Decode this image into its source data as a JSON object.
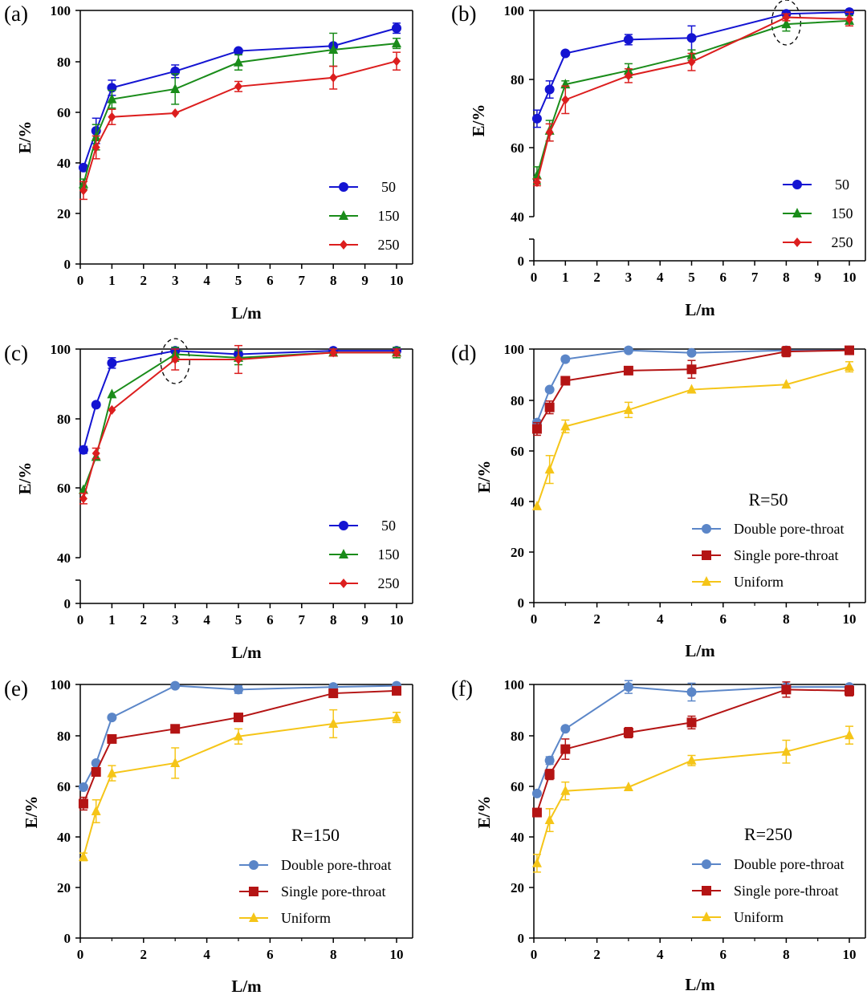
{
  "figure": {
    "colors": {
      "s50": "#1414d2",
      "s150": "#1a8c1a",
      "s250": "#dc1e1e",
      "double": "#5b86c8",
      "single": "#b41414",
      "uniform": "#f5c518"
    }
  },
  "chart_data": [
    {
      "id": "a",
      "panel_label": "(a)",
      "type": "line",
      "xlabel": "L/m",
      "ylabel": "E/%",
      "xlim": [
        0,
        10
      ],
      "ylim": [
        0,
        100
      ],
      "xticks": [
        "0",
        "1",
        "2",
        "3",
        "4",
        "5",
        "6",
        "7",
        "8",
        "9",
        "10"
      ],
      "yticks": [
        "0",
        "20",
        "40",
        "60",
        "80",
        "100"
      ],
      "x": [
        0.1,
        0.5,
        1,
        3,
        5,
        8,
        10
      ],
      "series": [
        {
          "name": "50",
          "color": "#1414d2",
          "marker": "circle",
          "values": [
            38,
            52.5,
            69.5,
            76,
            84,
            86,
            93
          ],
          "errors": [
            0,
            5,
            3,
            2.5,
            0,
            0,
            2
          ]
        },
        {
          "name": "150",
          "color": "#1a8c1a",
          "marker": "triangle",
          "values": [
            31.5,
            50,
            65,
            69,
            79.5,
            84.5,
            87
          ],
          "errors": [
            2,
            5,
            3.5,
            6,
            3,
            6.5,
            2
          ]
        },
        {
          "name": "250",
          "color": "#dc1e1e",
          "marker": "diamond",
          "values": [
            29,
            46,
            58,
            59.5,
            70,
            73.5,
            80
          ],
          "errors": [
            3.5,
            4.5,
            3,
            0,
            2,
            4.5,
            3.5
          ]
        }
      ],
      "annotations": []
    },
    {
      "id": "b",
      "panel_label": "(b)",
      "type": "line",
      "xlabel": "L/m",
      "ylabel": "E/%",
      "xlim": [
        0,
        10
      ],
      "ylim": [
        40,
        100
      ],
      "broken_axis": true,
      "xticks": [
        "0",
        "1",
        "2",
        "3",
        "4",
        "5",
        "6",
        "7",
        "8",
        "9",
        "10"
      ],
      "yticks": [
        "40",
        "60",
        "80",
        "100"
      ],
      "ybreak_label": "0",
      "x": [
        0.1,
        0.5,
        1,
        3,
        5,
        8,
        10
      ],
      "series": [
        {
          "name": "50",
          "color": "#1414d2",
          "marker": "circle",
          "values": [
            68.5,
            77,
            87.5,
            91.5,
            92,
            99,
            99.5
          ],
          "errors": [
            2.5,
            2.5,
            0,
            1.5,
            3.5,
            0.5,
            0
          ]
        },
        {
          "name": "150",
          "color": "#1a8c1a",
          "marker": "triangle",
          "values": [
            52,
            65,
            78.5,
            82.5,
            87,
            96,
            97
          ],
          "errors": [
            2.5,
            3,
            1,
            2,
            1.5,
            2,
            1.5
          ]
        },
        {
          "name": "250",
          "color": "#dc1e1e",
          "marker": "diamond",
          "values": [
            50,
            64.5,
            74,
            81,
            85,
            98,
            97.5
          ],
          "errors": [
            1,
            2.5,
            4,
            2,
            2.5,
            1,
            2
          ]
        }
      ],
      "annotations": [
        "dashed ellipse at L=8"
      ]
    },
    {
      "id": "c",
      "panel_label": "(c)",
      "type": "line",
      "xlabel": "L/m",
      "ylabel": "E/%",
      "xlim": [
        0,
        10
      ],
      "ylim": [
        40,
        100
      ],
      "broken_axis": true,
      "xticks": [
        "0",
        "1",
        "2",
        "3",
        "4",
        "5",
        "6",
        "7",
        "8",
        "9",
        "10"
      ],
      "yticks": [
        "40",
        "60",
        "80",
        "100"
      ],
      "ybreak_label": "0",
      "x": [
        0.1,
        0.5,
        1,
        3,
        5,
        8,
        10
      ],
      "series": [
        {
          "name": "50",
          "color": "#1414d2",
          "marker": "circle",
          "values": [
            71,
            84,
            96,
            99.5,
            98.5,
            99.5,
            99.5
          ],
          "errors": [
            1,
            0,
            1.5,
            0.5,
            1,
            0.5,
            0.5
          ]
        },
        {
          "name": "150",
          "color": "#1a8c1a",
          "marker": "triangle",
          "values": [
            59.5,
            69,
            87,
            98.5,
            97.5,
            99,
            99
          ],
          "errors": [
            0,
            0,
            0,
            2,
            2,
            1,
            1.5
          ]
        },
        {
          "name": "250",
          "color": "#dc1e1e",
          "marker": "diamond",
          "values": [
            57,
            70,
            82.5,
            97,
            97,
            99,
            99
          ],
          "errors": [
            1.5,
            1.5,
            0,
            3,
            4,
            1,
            1
          ]
        }
      ],
      "annotations": [
        "dashed ellipse at L=3"
      ]
    },
    {
      "id": "d",
      "panel_label": "(d)",
      "type": "line",
      "xlabel": "L/m",
      "ylabel": "E/%",
      "inner_label": "R=50",
      "xlim": [
        0,
        10
      ],
      "ylim": [
        0,
        100
      ],
      "xticks": [
        "0",
        "2",
        "4",
        "6",
        "8",
        "10"
      ],
      "yticks": [
        "0",
        "20",
        "40",
        "60",
        "80",
        "100"
      ],
      "x": [
        0.1,
        0.5,
        1,
        3,
        5,
        8,
        10
      ],
      "series": [
        {
          "name": "Double pore-throat",
          "color": "#5b86c8",
          "marker": "circle",
          "values": [
            71,
            84,
            96,
            99.5,
            98.5,
            99.5,
            99.5
          ],
          "errors": [
            1,
            0,
            1,
            1,
            0,
            0,
            0
          ]
        },
        {
          "name": "Single pore-throat",
          "color": "#b41414",
          "marker": "square",
          "values": [
            68.5,
            77,
            87.5,
            91.5,
            92,
            99,
            99.5
          ],
          "errors": [
            2.5,
            2.5,
            0,
            1.5,
            3.5,
            2,
            1
          ]
        },
        {
          "name": "Uniform",
          "color": "#f5c518",
          "marker": "triangle",
          "values": [
            38,
            52.5,
            69.5,
            76,
            84,
            86,
            93
          ],
          "errors": [
            0,
            5.5,
            2.5,
            3,
            0,
            0,
            2
          ]
        }
      ],
      "annotations": []
    },
    {
      "id": "e",
      "panel_label": "(e)",
      "type": "line",
      "xlabel": "L/m",
      "ylabel": "E/%",
      "inner_label": "R=150",
      "xlim": [
        0,
        10
      ],
      "ylim": [
        0,
        100
      ],
      "xticks": [
        "0",
        "2",
        "4",
        "6",
        "8",
        "10"
      ],
      "yticks": [
        "0",
        "20",
        "40",
        "60",
        "80",
        "100"
      ],
      "x": [
        0.1,
        0.5,
        1,
        3,
        5,
        8,
        10
      ],
      "series": [
        {
          "name": "Double pore-throat",
          "color": "#5b86c8",
          "marker": "circle",
          "values": [
            59.5,
            69,
            87,
            99.5,
            98,
            99,
            99.5
          ],
          "errors": [
            0,
            0,
            0,
            0,
            1.5,
            0.5,
            0.5
          ]
        },
        {
          "name": "Single pore-throat",
          "color": "#b41414",
          "marker": "square",
          "values": [
            53,
            65.5,
            78.5,
            82.5,
            87,
            96.5,
            97.5
          ],
          "errors": [
            2.5,
            1.5,
            1,
            1.5,
            1.5,
            0.5,
            0.5
          ]
        },
        {
          "name": "Uniform",
          "color": "#f5c518",
          "marker": "triangle",
          "values": [
            32,
            50,
            65,
            69,
            79.5,
            84.5,
            87
          ],
          "errors": [
            1.5,
            4.5,
            3,
            6,
            3,
            5.5,
            2
          ]
        }
      ],
      "annotations": []
    },
    {
      "id": "f",
      "panel_label": "(f)",
      "type": "line",
      "xlabel": "L/m",
      "ylabel": "E/%",
      "inner_label": "R=250",
      "xlim": [
        0,
        10
      ],
      "ylim": [
        0,
        100
      ],
      "xticks": [
        "0",
        "2",
        "4",
        "6",
        "8",
        "10"
      ],
      "yticks": [
        "0",
        "20",
        "40",
        "60",
        "80",
        "100"
      ],
      "x": [
        0.1,
        0.5,
        1,
        3,
        5,
        8,
        10
      ],
      "series": [
        {
          "name": "Double pore-throat",
          "color": "#5b86c8",
          "marker": "circle",
          "values": [
            57,
            70,
            82.5,
            99,
            97,
            99,
            99
          ],
          "errors": [
            0,
            1.5,
            0,
            2.5,
            3.5,
            0.5,
            0.5
          ]
        },
        {
          "name": "Single pore-throat",
          "color": "#b41414",
          "marker": "square",
          "values": [
            49.5,
            64.5,
            74.5,
            81,
            85,
            98,
            97.5
          ],
          "errors": [
            0,
            2,
            4,
            2,
            2.5,
            3,
            2
          ]
        },
        {
          "name": "Uniform",
          "color": "#f5c518",
          "marker": "triangle",
          "values": [
            29.5,
            46.5,
            58,
            59.5,
            70,
            73.5,
            80
          ],
          "errors": [
            3.5,
            4.5,
            3.5,
            0,
            2,
            4.5,
            3.5
          ]
        }
      ],
      "annotations": []
    }
  ]
}
